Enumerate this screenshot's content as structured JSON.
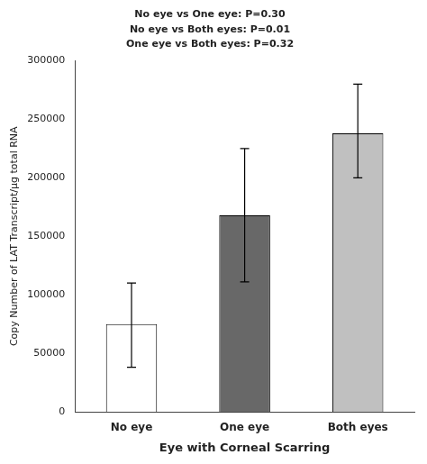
{
  "chart_data": {
    "type": "bar",
    "categories": [
      "No eye",
      "One eye",
      "Both eyes"
    ],
    "values": [
      75000,
      168000,
      238000
    ],
    "errors_upper": [
      35000,
      57000,
      42000
    ],
    "errors_lower": [
      37000,
      57000,
      38000
    ],
    "colors": [
      "#ffffff",
      "#686868",
      "#c0c0c0"
    ],
    "ylabel": "Copy Number of LAT Transcript/µg total RNA",
    "xlabel": "Eye with Corneal Scarring",
    "annotations": [
      "No eye vs One eye: P=0.30",
      "No eye vs Both eyes: P=0.01",
      "One eye vs Both eyes: P=0.32"
    ],
    "ylim": [
      0,
      300000
    ],
    "yticks": [
      0,
      50000,
      100000,
      150000,
      200000,
      250000,
      300000
    ],
    "grid": false
  }
}
